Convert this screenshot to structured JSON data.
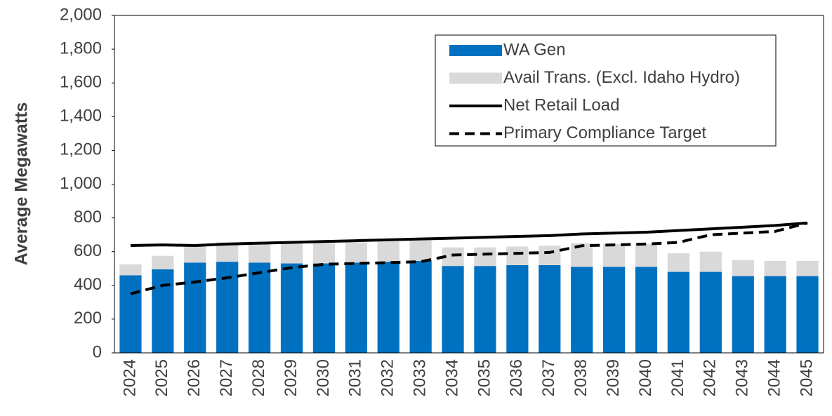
{
  "chart_data": {
    "type": "bar",
    "y_label": "Average Megawatts",
    "categories": [
      "2024",
      "2025",
      "2026",
      "2027",
      "2028",
      "2029",
      "2030",
      "2031",
      "2032",
      "2033",
      "2034",
      "2035",
      "2036",
      "2037",
      "2038",
      "2039",
      "2040",
      "2041",
      "2042",
      "2043",
      "2044",
      "2045"
    ],
    "stacked": true,
    "series": [
      {
        "name": "WA Gen",
        "type": "bar",
        "color": "#0070c0",
        "values": [
          460,
          495,
          535,
          540,
          535,
          530,
          530,
          535,
          540,
          545,
          515,
          515,
          520,
          520,
          510,
          510,
          510,
          480,
          480,
          455,
          455,
          455
        ]
      },
      {
        "name": "Avail Trans. (Excl. Idaho Hydro)",
        "type": "bar",
        "color": "#d9d9d9",
        "values": [
          65,
          80,
          105,
          115,
          120,
          120,
          120,
          120,
          120,
          125,
          110,
          110,
          110,
          115,
          140,
          135,
          135,
          110,
          120,
          95,
          90,
          90
        ]
      },
      {
        "name": "Net Retail Load",
        "type": "line",
        "color": "#000000",
        "dashed": false,
        "values": [
          636,
          640,
          636,
          645,
          650,
          655,
          660,
          665,
          670,
          675,
          680,
          685,
          690,
          695,
          705,
          710,
          715,
          725,
          735,
          745,
          755,
          770
        ]
      },
      {
        "name": "Primary Compliance Target",
        "type": "line",
        "color": "#000000",
        "dashed": true,
        "values": [
          350,
          400,
          420,
          445,
          475,
          505,
          525,
          530,
          535,
          540,
          580,
          585,
          590,
          595,
          635,
          640,
          645,
          655,
          700,
          710,
          720,
          770
        ]
      }
    ],
    "ylim": [
      0,
      2000
    ],
    "yticks": [
      0,
      200,
      400,
      600,
      800,
      {
        "value": 1000,
        "label": "1,000"
      },
      {
        "value": 1200,
        "label": "1,200"
      },
      {
        "value": 1400,
        "label": "1,400"
      },
      {
        "value": 1600,
        "label": "1,600"
      },
      {
        "value": 1800,
        "label": "1,800"
      },
      {
        "value": 2000,
        "label": "2,000"
      }
    ],
    "legend": "upper right"
  }
}
